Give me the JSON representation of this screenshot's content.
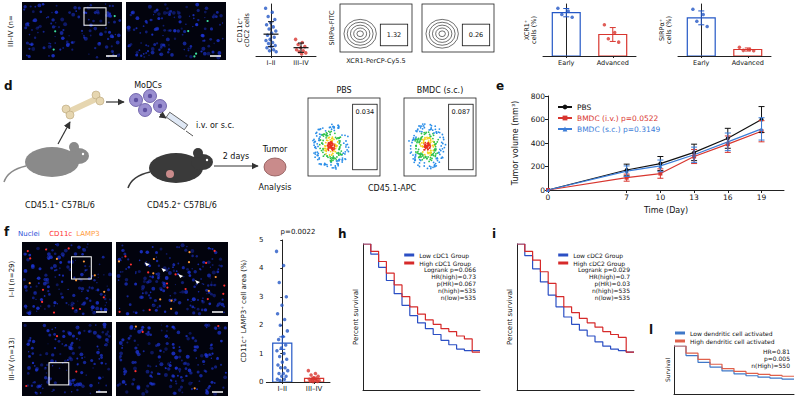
{
  "chart_data": [
    {
      "type": "strip",
      "y_label": "CD11c⁺ cDC2 cells",
      "categories": [
        "I–II",
        "III–IV"
      ],
      "groups": [
        {
          "color": "#2458c6",
          "values": [
            4.6,
            4.2,
            3.8,
            3.5,
            3.2,
            3.0,
            2.8,
            2.6,
            2.4,
            2.2,
            2.0,
            1.8,
            1.6,
            1.5,
            1.3,
            1.2,
            1.0,
            0.9,
            0.8,
            0.6,
            0.5,
            0.4
          ],
          "mean": 2.1,
          "error": 1.2
        },
        {
          "color": "#d8362f",
          "values": [
            1.6,
            1.3,
            1.1,
            0.9,
            0.8,
            0.6,
            0.5,
            0.4,
            0.3,
            0.2
          ],
          "mean": 0.8,
          "error": 0.45
        }
      ],
      "ylim": [
        0,
        5
      ],
      "tick_labels": "x"
    },
    {
      "type": "bar",
      "y_label": "XCR1⁺ cells (%)",
      "categories": [
        "Early",
        "Advanced"
      ],
      "values": [
        1.25,
        0.62
      ],
      "errors": [
        0.12,
        0.2
      ],
      "points": [
        [
          1.38,
          1.3,
          1.2,
          1.12
        ],
        [
          0.9,
          0.68,
          0.5,
          0.4
        ]
      ],
      "colors": [
        "#2458c6",
        "#d8362f"
      ],
      "ylim": [
        0,
        1.5
      ],
      "tick_labels": "x"
    },
    {
      "type": "bar",
      "y_label": "SIRPα⁺ cells (%)",
      "categories": [
        "Early",
        "Advanced"
      ],
      "values": [
        8.8,
        1.5
      ],
      "errors": [
        1.6,
        0.35
      ],
      "points": [
        [
          10.8,
          9.6,
          8,
          6.8
        ],
        [
          2,
          1.5,
          1.3,
          1.2
        ]
      ],
      "colors": [
        "#2458c6",
        "#d8362f"
      ],
      "ylim": [
        0,
        12
      ],
      "tick_labels": "x"
    },
    {
      "panel": "e",
      "type": "line",
      "x_label": "Time (Day)",
      "y_label": "Tumor volume (mm³)",
      "x": [
        0,
        7,
        10,
        13,
        16,
        19
      ],
      "series": [
        {
          "name": "PBS",
          "color": "#111111",
          "marker": "circle",
          "values": [
            0,
            170,
            225,
            320,
            440,
            600
          ],
          "errors": [
            0,
            50,
            60,
            70,
            85,
            110
          ]
        },
        {
          "name": "BMDC (i.v.) p=0.0522",
          "color": "#d8362f",
          "marker": "square",
          "values": [
            0,
            105,
            140,
            285,
            390,
            500
          ],
          "errors": [
            0,
            30,
            40,
            60,
            70,
            90
          ]
        },
        {
          "name": "BMDC (s.c.) p=0.3149",
          "color": "#3b7dd8",
          "marker": "triangle",
          "values": [
            0,
            160,
            205,
            300,
            410,
            520
          ],
          "errors": [
            0,
            45,
            50,
            65,
            75,
            95
          ]
        }
      ],
      "xlim": [
        0,
        21
      ],
      "xticks": [
        0,
        7,
        10,
        13,
        16,
        19
      ],
      "ylim": [
        0,
        800
      ],
      "yticks": [
        0,
        200,
        400,
        600,
        800
      ],
      "legend": "upper left"
    },
    {
      "type": "bar",
      "y_label": "CD11c⁺ LAMP3⁺ cell area (%)",
      "annotations": [
        "p=0.0022"
      ],
      "categories": [
        "I–II",
        "III–IV"
      ],
      "values": [
        1.37,
        0.13
      ],
      "errors": [
        0.22,
        0.04
      ],
      "points": [
        [
          4.6,
          4.1,
          3.5,
          3.0,
          2.7,
          2.4,
          2.2,
          2.0,
          1.8,
          1.6,
          1.5,
          1.3,
          1.2,
          1.1,
          1.0,
          0.9,
          0.8,
          0.7,
          0.6,
          0.5,
          0.5,
          0.4,
          0.3,
          0.3,
          0.2,
          0.2,
          0.1,
          0.1,
          0.05
        ],
        [
          0.4,
          0.3,
          0.25,
          0.2,
          0.15,
          0.1,
          0.1,
          0.08,
          0.05,
          0.05,
          0.03,
          0.02,
          0.01
        ]
      ],
      "colors": [
        "#2458c6",
        "#d8362f"
      ],
      "ylim": [
        0,
        5
      ],
      "yticks": [
        0,
        1,
        2,
        3,
        4,
        5
      ]
    },
    {
      "panel": "h",
      "type": "step",
      "y_label": "Percent survival",
      "x": [
        0,
        10,
        20,
        30,
        40,
        50,
        60,
        70,
        80,
        90,
        100,
        110,
        120,
        130,
        140,
        150
      ],
      "series": [
        {
          "name": "Low cDC1 Group",
          "color": "#2b4fc4",
          "values": [
            1,
            0.93,
            0.84,
            0.75,
            0.66,
            0.58,
            0.51,
            0.46,
            0.42,
            0.38,
            0.34,
            0.31,
            0.28,
            0.27,
            0.27,
            0.27
          ]
        },
        {
          "name": "High cDC1 Group",
          "color": "#d62a2a",
          "values": [
            1,
            0.95,
            0.88,
            0.8,
            0.72,
            0.64,
            0.57,
            0.52,
            0.48,
            0.45,
            0.42,
            0.4,
            0.37,
            0.35,
            0.26,
            0.26
          ]
        }
      ],
      "annotations": [
        "Logrank p=0.066",
        "HR(high)=0.73",
        "p(HR)=0.067",
        "n(high)=535",
        "n(low)=535"
      ],
      "xlim": [
        0,
        150
      ],
      "ylim": [
        0,
        1
      ],
      "tick_labels": false,
      "legend": "upper right"
    },
    {
      "panel": "i",
      "type": "step",
      "y_label": "Percent survival",
      "x": [
        0,
        10,
        20,
        30,
        40,
        50,
        60,
        70,
        80,
        90,
        100,
        110,
        120,
        130,
        140,
        150
      ],
      "series": [
        {
          "name": "Low cDC2 Group",
          "color": "#2b4fc4",
          "values": [
            1,
            0.92,
            0.83,
            0.74,
            0.65,
            0.57,
            0.5,
            0.45,
            0.41,
            0.37,
            0.33,
            0.3,
            0.28,
            0.27,
            0.26,
            0.26
          ]
        },
        {
          "name": "High cDC2 Group",
          "color": "#d62a2a",
          "values": [
            1,
            0.95,
            0.89,
            0.81,
            0.73,
            0.64,
            0.57,
            0.53,
            0.49,
            0.46,
            0.43,
            0.4,
            0.38,
            0.36,
            0.26,
            0.26
          ]
        }
      ],
      "annotations": [
        "Logrank p=0.029",
        "HR(high)=0.7",
        "p(HR)=0.03",
        "n(high)=535",
        "n(low)=535"
      ],
      "xlim": [
        0,
        150
      ],
      "ylim": [
        0,
        1
      ],
      "tick_labels": false,
      "legend": "upper right"
    },
    {
      "panel": "l",
      "type": "step",
      "y_label": "Survival",
      "x": [
        0,
        10,
        20,
        30,
        40,
        50,
        60,
        70,
        80,
        90,
        100
      ],
      "series": [
        {
          "name": "Low dendritic cell activated",
          "color": "#3f78c8",
          "values": [
            1,
            0.8,
            0.66,
            0.56,
            0.48,
            0.42,
            0.38,
            0.35,
            0.33,
            0.31,
            0.3
          ]
        },
        {
          "name": "High dendritic cell activated",
          "color": "#e0604a",
          "values": [
            1,
            0.85,
            0.72,
            0.62,
            0.53,
            0.47,
            0.43,
            0.41,
            0.39,
            0.37,
            0.36
          ]
        }
      ],
      "annotations": [
        "HR=0.81",
        "p=0.005",
        "n(High)=550"
      ],
      "xlim": [
        0,
        100
      ],
      "ylim": [
        0,
        1
      ],
      "tick_labels": false,
      "legend": "top"
    }
  ],
  "images": [
    {
      "labels": [
        "III–IV (n="
      ]
    },
    {
      "panel": "f",
      "channels": [
        {
          "name": "Nuclei",
          "color": "#4a6dff"
        },
        {
          "name": "CD11c",
          "color": "#ff3030"
        },
        {
          "name": "LAMP3",
          "color": "#ff9a3a"
        }
      ],
      "labels": [
        "I–II (n=29)",
        "III–IV (n=13)"
      ]
    }
  ],
  "flow_plots": [
    {
      "x_label": "XCR1-PerCP-Cy5.5",
      "y_label": "SIRPα-FITC",
      "gates": [
        1.32,
        0.26
      ]
    },
    {
      "x_label": "CD45.1-APC",
      "titles": [
        "PBS",
        "BMDC (s.c.)"
      ],
      "gates": [
        0.034,
        0.087
      ]
    }
  ],
  "schematic": {
    "panel": "d",
    "donor": "CD45.1⁺ C57BL/6",
    "cells": "MoDCs",
    "route": "i.v. or s.c.",
    "recipient": "CD45.2⁺ C57BL/6",
    "interval": "2 days",
    "tumor": "Tumor",
    "readout": "Analysis"
  }
}
